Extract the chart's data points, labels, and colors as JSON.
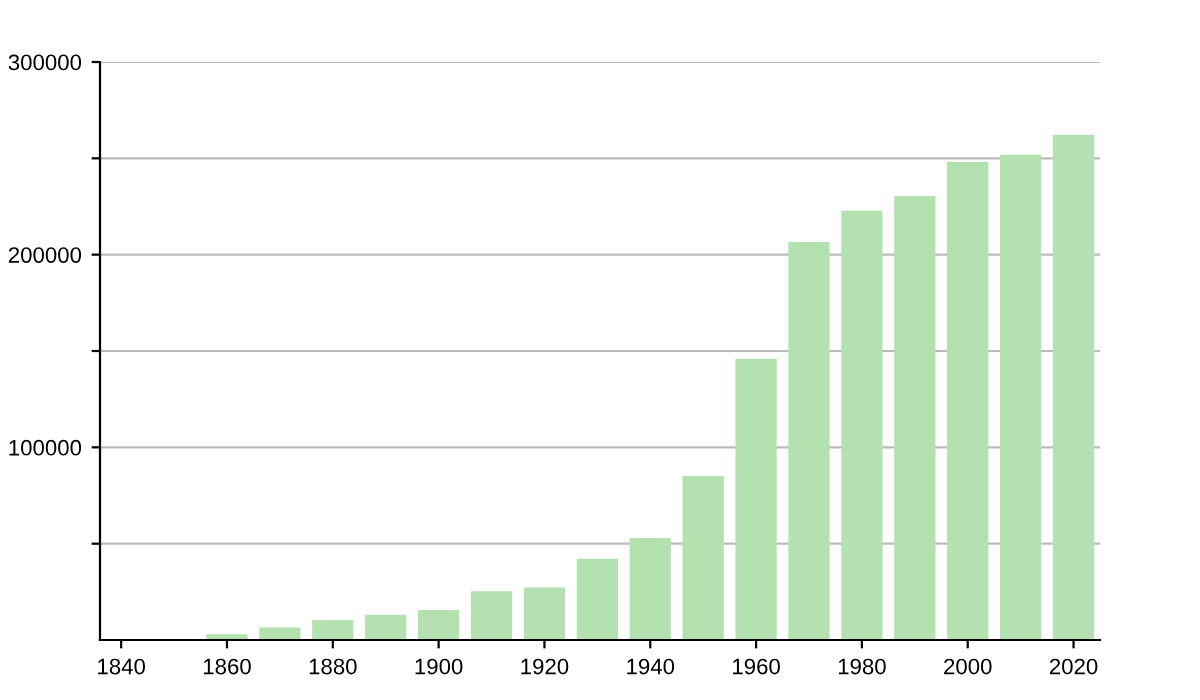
{
  "chart_data": {
    "type": "bar",
    "x": [
      1860,
      1870,
      1880,
      1890,
      1900,
      1910,
      1920,
      1930,
      1940,
      1950,
      1960,
      1970,
      1980,
      1990,
      2000,
      2010,
      2020
    ],
    "values": [
      3000,
      6500,
      10400,
      13100,
      15600,
      25300,
      27300,
      42200,
      52900,
      85100,
      146000,
      206600,
      222800,
      230400,
      248100,
      251900,
      262300
    ],
    "color": "#b3e2b0",
    "xlim": [
      1836,
      2025
    ],
    "xticks": [
      1840,
      1860,
      1880,
      1900,
      1920,
      1940,
      1960,
      1980,
      2000,
      2020
    ],
    "ylim": [
      0,
      300000
    ],
    "yticks": [
      {
        "value": 50000,
        "label": null
      },
      100000,
      {
        "value": 150000,
        "label": null
      },
      200000,
      {
        "value": 250000,
        "label": null
      },
      300000
    ],
    "grid": "y",
    "legend": false
  }
}
